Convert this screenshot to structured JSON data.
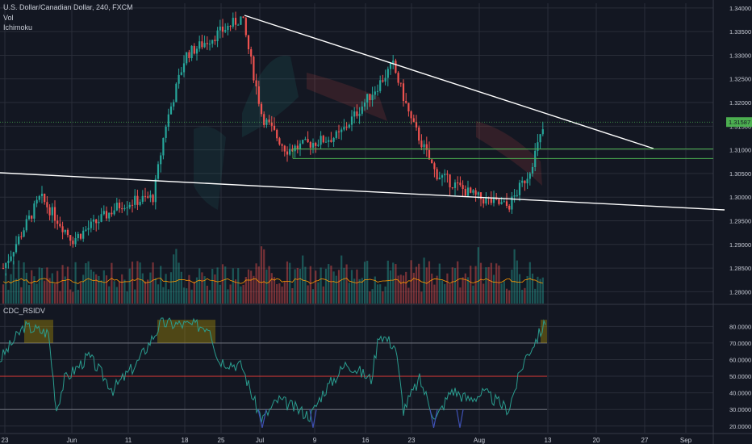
{
  "header": {
    "symbol_title": "U.S. Dollar/Canadian Dollar, 240, FXCM",
    "vol_label": "Vol",
    "ichimoku_label": "Ichimoku"
  },
  "rsi_panel": {
    "title": "CDC_RSIDV"
  },
  "colors": {
    "background": "#131722",
    "grid": "#2a2e39",
    "bull": "#26a69a",
    "bear": "#ef5350",
    "trendline": "#ffffff",
    "support_zone": "#4caf50",
    "price_tag": "#4caf50",
    "rsi_line": "#2a9d8f",
    "rsi_mid": "#e53935"
  },
  "chart_data": [
    {
      "type": "candlestick",
      "title": "U.S. Dollar/Canadian Dollar, 240, FXCM",
      "y_axis_ticks": [
        "1.34000",
        "1.33500",
        "1.33000",
        "1.32500",
        "1.32000",
        "1.31500",
        "1.31000",
        "1.30500",
        "1.30000",
        "1.29500",
        "1.29000",
        "1.28500",
        "1.28000"
      ],
      "ylim": [
        1.2775,
        1.341
      ],
      "x_axis_ticks": [
        "23",
        "Jun",
        "11",
        "18",
        "25",
        "Jul",
        "9",
        "16",
        "23",
        "Aug",
        "13",
        "20",
        "27",
        "Sep"
      ],
      "last_price_label": "1.31587",
      "last_price": 1.31587,
      "support_zone": [
        1.3085,
        1.3095
      ],
      "key_prices": [
        {
          "date": "May 23",
          "close": 1.285
        },
        {
          "date": "May 28",
          "close": 1.3
        },
        {
          "date": "Jun 1",
          "close": 1.291
        },
        {
          "date": "Jun 8",
          "close": 1.2985
        },
        {
          "date": "Jun 13",
          "close": 1.3
        },
        {
          "date": "Jun 18",
          "close": 1.315
        },
        {
          "date": "Jun 22",
          "close": 1.33
        },
        {
          "date": "Jun 27",
          "close": 1.338
        },
        {
          "date": "Jul 2",
          "close": 1.317
        },
        {
          "date": "Jul 6",
          "close": 1.31
        },
        {
          "date": "Jul 11",
          "close": 1.313
        },
        {
          "date": "Jul 17",
          "close": 1.324
        },
        {
          "date": "Jul 19",
          "close": 1.328
        },
        {
          "date": "Jul 23",
          "close": 1.316
        },
        {
          "date": "Jul 27",
          "close": 1.305
        },
        {
          "date": "Aug 1",
          "close": 1.3
        },
        {
          "date": "Aug 7",
          "close": 1.298
        },
        {
          "date": "Aug 10",
          "close": 1.305
        },
        {
          "date": "Aug 13",
          "close": 1.3159
        }
      ]
    },
    {
      "type": "line",
      "title": "CDC_RSIDV",
      "y_axis_ticks": [
        "80.0000",
        "70.0000",
        "60.0000",
        "50.0000",
        "40.0000",
        "30.0000",
        "20.0000"
      ],
      "ylim": [
        16,
        86
      ],
      "reference_levels": [
        70,
        50,
        30
      ]
    }
  ]
}
